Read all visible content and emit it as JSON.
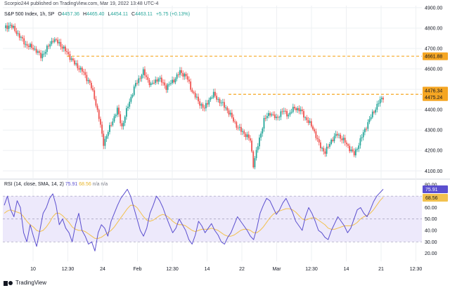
{
  "header": {
    "published": "Scorpio244 published on TradingView.com, Mar 19, 2022 13:48 UTC-4",
    "symbol": "S&P 500 Index, 1h, SP",
    "open_label": "O",
    "open": "4457.36",
    "high_label": "H",
    "high": "4465.40",
    "low_label": "L",
    "low": "4454.11",
    "close_label": "C",
    "close": "4463.11",
    "change": "+5.75 (+0.13%)"
  },
  "rsi_legend": {
    "label": "RSI (14, close, SMA, 14, 2)",
    "rsi_value": "75.91",
    "sma_value": "68.56",
    "na1": "n/a",
    "na2": "n/a"
  },
  "footer": {
    "brand": "TradingView"
  },
  "colors": {
    "up": "#26a69a",
    "down": "#ef5350",
    "level": "#f5a623",
    "rsi": "#5b4fcf",
    "rsi_sma": "#f2c14e",
    "rsi_band": "#ede9fb",
    "grid": "#eef0f3",
    "axis_text": "#131722"
  },
  "chart_data": [
    {
      "type": "candlestick",
      "title": "S&P 500 Index, 1h, SP",
      "y_ticks": [
        4100,
        4200,
        4300,
        4400,
        4500,
        4600,
        4700,
        4800,
        4900
      ],
      "y_tick_labels": [
        "4100.00",
        "4200.00",
        "4300.00",
        "4400.00",
        "4500.00",
        "4600.00",
        "4700.00",
        "4800.00",
        "4900.00"
      ],
      "ylim": [
        4070,
        4910
      ],
      "x_tick_labels": [
        "10",
        "12:30",
        "24",
        "Feb",
        "12:30",
        "14",
        "22",
        "Mar",
        "12:30",
        "14",
        "21",
        "12:30"
      ],
      "price_labels": [
        "4661.88",
        "4476.34",
        "4475.24"
      ],
      "levels": [
        4661.88,
        4475.24
      ],
      "close_path": [
        {
          "t": 0,
          "v": 4800
        },
        {
          "t": 4,
          "v": 4815
        },
        {
          "t": 9,
          "v": 4770
        },
        {
          "t": 14,
          "v": 4720
        },
        {
          "t": 18,
          "v": 4705
        },
        {
          "t": 21,
          "v": 4690
        },
        {
          "t": 24,
          "v": 4660
        },
        {
          "t": 28,
          "v": 4700
        },
        {
          "t": 32,
          "v": 4745
        },
        {
          "t": 36,
          "v": 4725
        },
        {
          "t": 41,
          "v": 4680
        },
        {
          "t": 46,
          "v": 4625
        },
        {
          "t": 51,
          "v": 4590
        },
        {
          "t": 56,
          "v": 4530
        },
        {
          "t": 59,
          "v": 4460
        },
        {
          "t": 62,
          "v": 4360
        },
        {
          "t": 65,
          "v": 4235
        },
        {
          "t": 70,
          "v": 4330
        },
        {
          "t": 74,
          "v": 4400
        },
        {
          "t": 77,
          "v": 4315
        },
        {
          "t": 81,
          "v": 4420
        },
        {
          "t": 86,
          "v": 4525
        },
        {
          "t": 91,
          "v": 4585
        },
        {
          "t": 96,
          "v": 4520
        },
        {
          "t": 101,
          "v": 4555
        },
        {
          "t": 106,
          "v": 4510
        },
        {
          "t": 111,
          "v": 4545
        },
        {
          "t": 115,
          "v": 4585
        },
        {
          "t": 119,
          "v": 4565
        },
        {
          "t": 123,
          "v": 4490
        },
        {
          "t": 127,
          "v": 4440
        },
        {
          "t": 131,
          "v": 4405
        },
        {
          "t": 134,
          "v": 4450
        },
        {
          "t": 137,
          "v": 4475
        },
        {
          "t": 141,
          "v": 4440
        },
        {
          "t": 145,
          "v": 4410
        },
        {
          "t": 149,
          "v": 4360
        },
        {
          "t": 153,
          "v": 4310
        },
        {
          "t": 157,
          "v": 4285
        },
        {
          "t": 161,
          "v": 4250
        },
        {
          "t": 163,
          "v": 4130
        },
        {
          "t": 166,
          "v": 4225
        },
        {
          "t": 170,
          "v": 4350
        },
        {
          "t": 174,
          "v": 4385
        },
        {
          "t": 178,
          "v": 4355
        },
        {
          "t": 182,
          "v": 4395
        },
        {
          "t": 186,
          "v": 4375
        },
        {
          "t": 190,
          "v": 4410
        },
        {
          "t": 194,
          "v": 4395
        },
        {
          "t": 198,
          "v": 4350
        },
        {
          "t": 202,
          "v": 4310
        },
        {
          "t": 206,
          "v": 4230
        },
        {
          "t": 210,
          "v": 4190
        },
        {
          "t": 214,
          "v": 4250
        },
        {
          "t": 218,
          "v": 4280
        },
        {
          "t": 222,
          "v": 4250
        },
        {
          "t": 226,
          "v": 4210
        },
        {
          "t": 229,
          "v": 4180
        },
        {
          "t": 233,
          "v": 4250
        },
        {
          "t": 237,
          "v": 4320
        },
        {
          "t": 241,
          "v": 4380
        },
        {
          "t": 245,
          "v": 4435
        },
        {
          "t": 248,
          "v": 4463
        }
      ]
    },
    {
      "type": "line",
      "title": "RSI (14, close, SMA, 14, 2)",
      "y_ticks": [
        20,
        30,
        40,
        50,
        60,
        70,
        80
      ],
      "y_tick_labels": [
        "20.00",
        "30.00",
        "40.00",
        "50.00",
        "60.00",
        "70.00",
        "80.00"
      ],
      "ylim": [
        13,
        83
      ],
      "bands": {
        "upper": 70,
        "middle": 50,
        "lower": 30
      },
      "grid": true,
      "series": [
        {
          "values": [
            62,
            70,
            58,
            52,
            66,
            60,
            38,
            30,
            45,
            35,
            26,
            40,
            55,
            60,
            68,
            72,
            62,
            45,
            50,
            42,
            38,
            30,
            45,
            55,
            40,
            35,
            28,
            30,
            22,
            38,
            45,
            42,
            35,
            48,
            55,
            62,
            68,
            72,
            76,
            70,
            60,
            50,
            40,
            35,
            42,
            55,
            62,
            70,
            66,
            60,
            52,
            45,
            38,
            42,
            50,
            45,
            40,
            32,
            28,
            36,
            48,
            44,
            38,
            42,
            46,
            40,
            36,
            30,
            28,
            34,
            38,
            45,
            52,
            48,
            44,
            40,
            35,
            32,
            42,
            55,
            62,
            68,
            66,
            60,
            54,
            58,
            64,
            68,
            62,
            56,
            48,
            44,
            40,
            52,
            60,
            55,
            48,
            40,
            38,
            34,
            32,
            40,
            46,
            52,
            48,
            44,
            38,
            42,
            50,
            58,
            60,
            55,
            52,
            58,
            65,
            70,
            73,
            76
          ]
        },
        {
          "values": [
            55,
            57,
            58,
            57,
            56,
            55,
            52,
            48,
            45,
            43,
            40,
            39,
            40,
            43,
            47,
            52,
            55,
            55,
            53,
            50,
            47,
            43,
            41,
            40,
            40,
            39,
            37,
            35,
            33,
            33,
            34,
            36,
            38,
            40,
            43,
            47,
            51,
            55,
            59,
            62,
            62,
            60,
            56,
            52,
            49,
            48,
            49,
            51,
            53,
            54,
            53,
            51,
            48,
            46,
            45,
            45,
            44,
            42,
            40,
            39,
            40,
            41,
            41,
            41,
            42,
            41,
            40,
            38,
            36,
            35,
            35,
            36,
            38,
            40,
            41,
            41,
            40,
            38,
            38,
            40,
            43,
            47,
            51,
            54,
            56,
            57,
            58,
            59,
            59,
            58,
            56,
            53,
            50,
            49,
            50,
            51,
            51,
            49,
            47,
            45,
            42,
            41,
            41,
            42,
            43,
            44,
            44,
            44,
            45,
            47,
            50,
            52,
            53,
            55,
            58,
            62,
            66,
            69
          ]
        }
      ]
    }
  ]
}
